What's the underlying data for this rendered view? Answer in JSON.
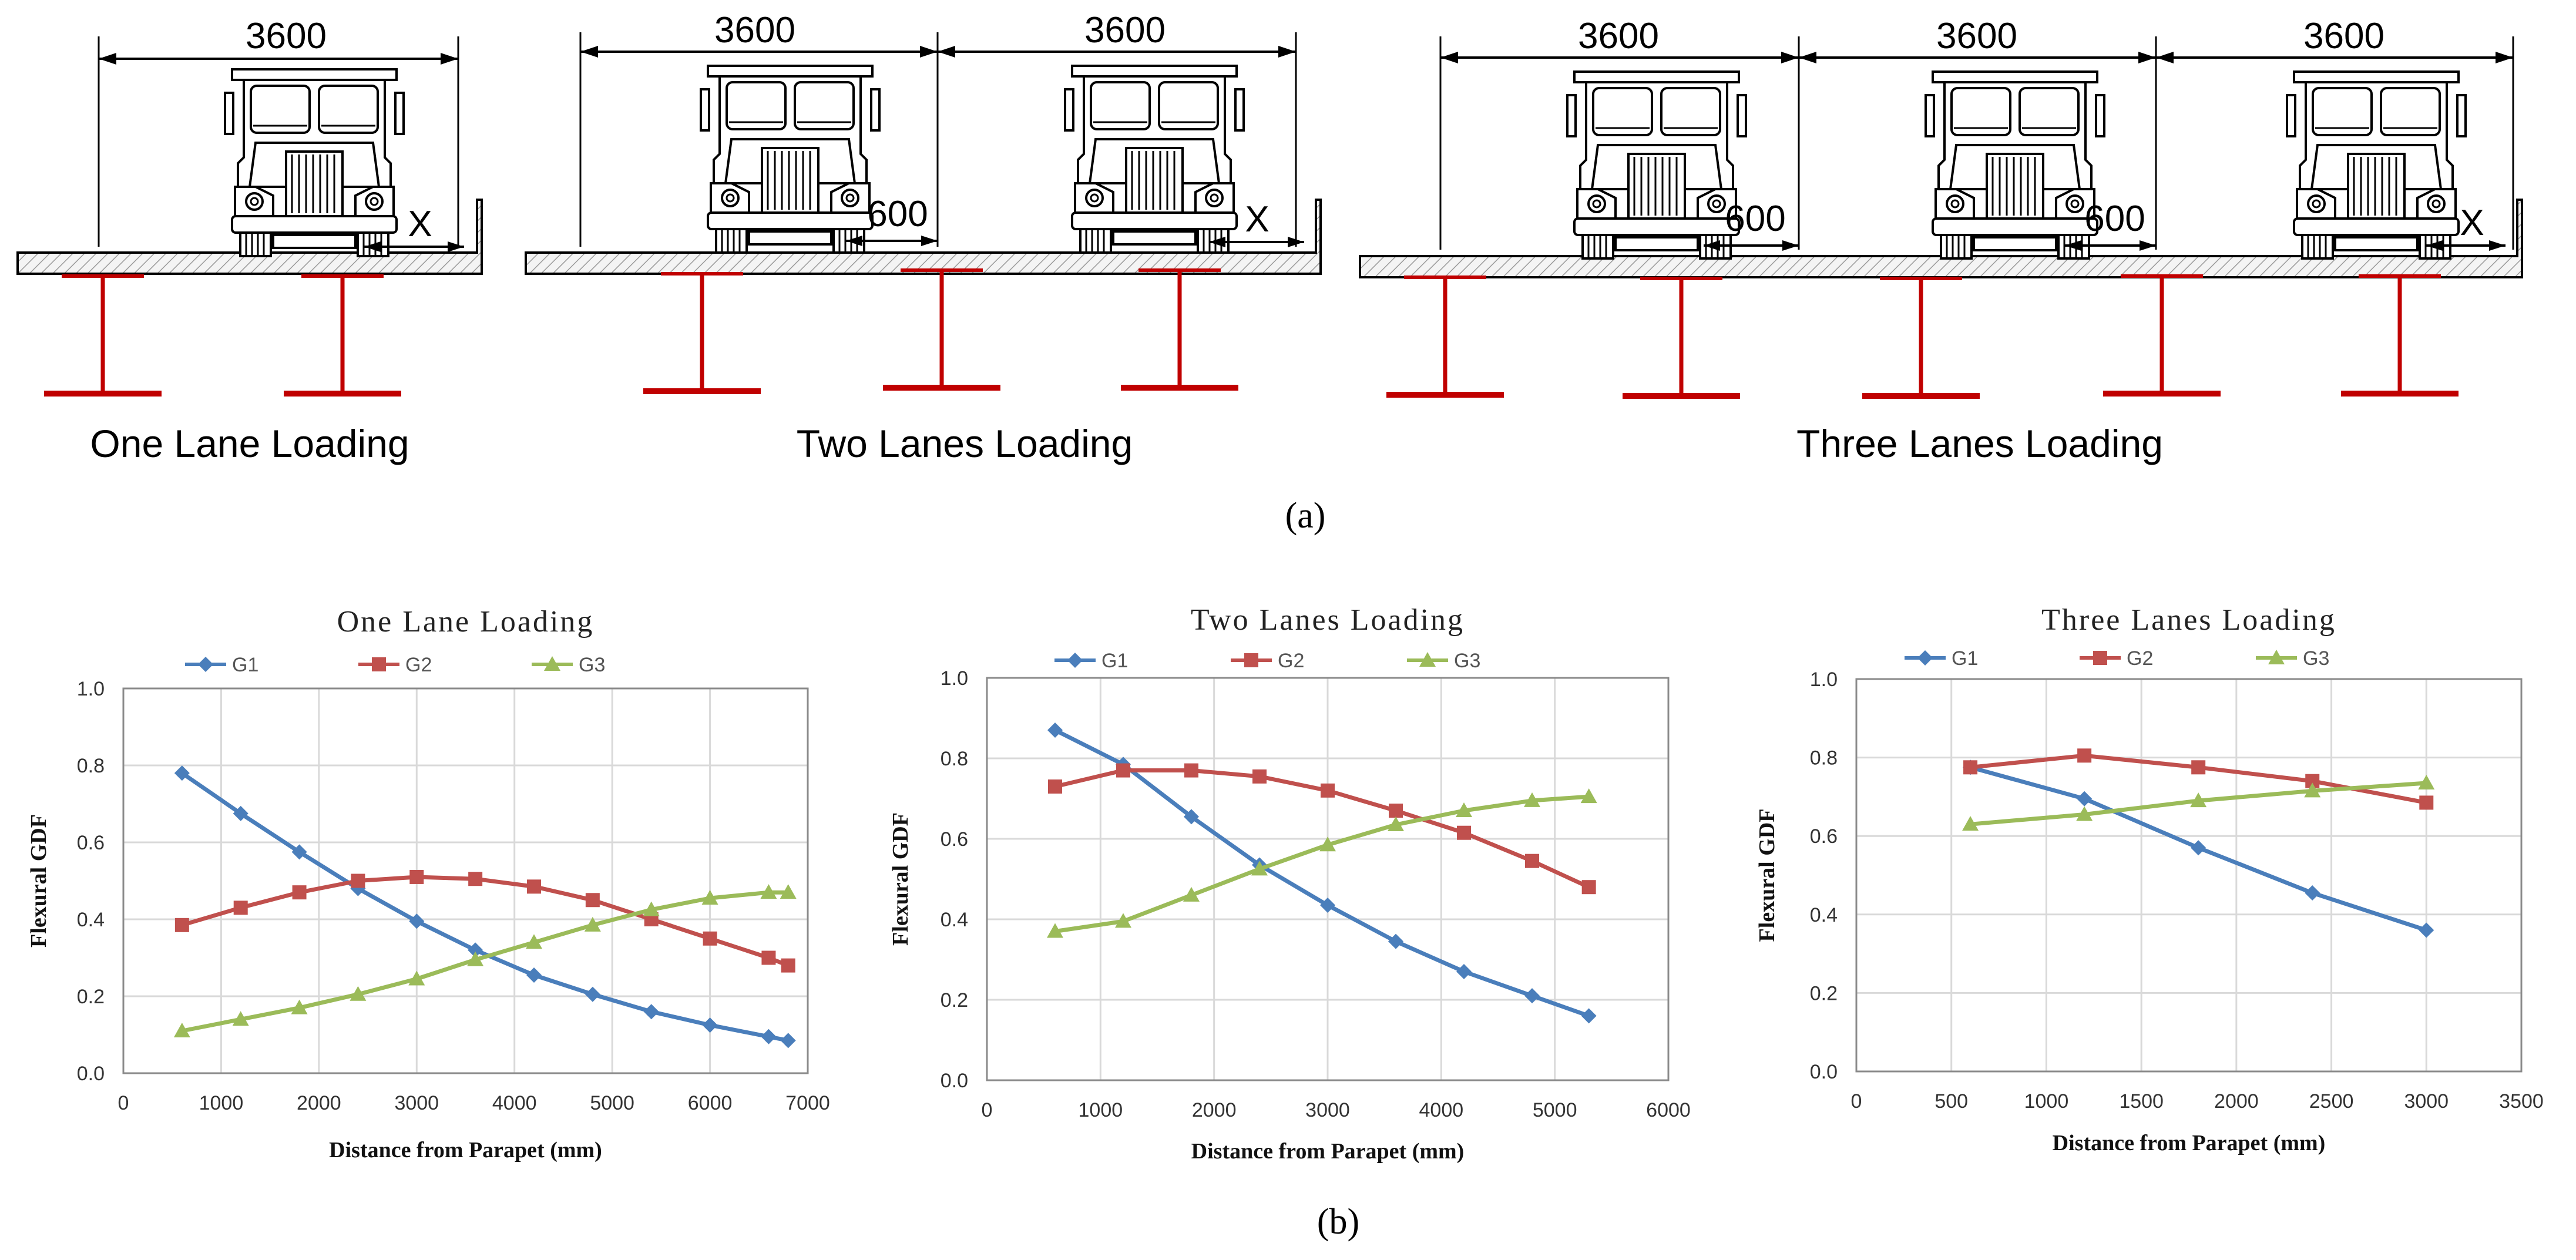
{
  "diagram": {
    "caption": "(a)",
    "schemes": [
      {
        "title": "One Lane Loading",
        "lane_width_labels": [
          "3600"
        ],
        "gap_labels": [],
        "parapet_label": "X"
      },
      {
        "title": "Two Lanes Loading",
        "lane_width_labels": [
          "3600",
          "3600"
        ],
        "gap_labels": [
          "600"
        ],
        "parapet_label": "X"
      },
      {
        "title": "Three Lanes Loading",
        "lane_width_labels": [
          "3600",
          "3600",
          "3600"
        ],
        "gap_labels": [
          "600",
          "600"
        ],
        "parapet_label": "X"
      }
    ],
    "colors": {
      "girder": "#c00000",
      "line": "#000000",
      "deck_hatch": "#9a9a9a"
    }
  },
  "charts_caption": "(b)",
  "chart_data": [
    {
      "type": "line",
      "title": "One Lane Loading",
      "xlabel": "Distance from Parapet (mm)",
      "ylabel": "Flexural GDF",
      "xlim": [
        0,
        7000
      ],
      "ylim": [
        0,
        1.0
      ],
      "xticks": [
        0,
        1000,
        2000,
        3000,
        4000,
        5000,
        6000,
        7000
      ],
      "yticks": [
        "0.0",
        "0.2",
        "0.4",
        "0.6",
        "0.8",
        "1.0"
      ],
      "grid": true,
      "legend": "top",
      "x": [
        600,
        1200,
        1800,
        2400,
        3000,
        3600,
        4200,
        4800,
        5400,
        6000,
        6600,
        6800
      ],
      "series": [
        {
          "name": "G1",
          "color": "#4a7ebb",
          "marker": "diamond",
          "values": [
            0.78,
            0.675,
            0.575,
            0.48,
            0.395,
            0.32,
            0.255,
            0.205,
            0.16,
            0.125,
            0.095,
            0.085
          ]
        },
        {
          "name": "G2",
          "color": "#c0504d",
          "marker": "square",
          "values": [
            0.385,
            0.43,
            0.47,
            0.5,
            0.51,
            0.505,
            0.485,
            0.45,
            0.4,
            0.35,
            0.3,
            0.28
          ]
        },
        {
          "name": "G3",
          "color": "#9bbb59",
          "marker": "triangle",
          "values": [
            0.11,
            0.14,
            0.17,
            0.205,
            0.245,
            0.295,
            0.34,
            0.385,
            0.425,
            0.455,
            0.47,
            0.47
          ]
        }
      ]
    },
    {
      "type": "line",
      "title": "Two Lanes Loading",
      "xlabel": "Distance from Parapet (mm)",
      "ylabel": "Flexural GDF",
      "xlim": [
        0,
        6000
      ],
      "ylim": [
        0,
        1.0
      ],
      "xticks": [
        0,
        1000,
        2000,
        3000,
        4000,
        5000,
        6000
      ],
      "yticks": [
        "0.0",
        "0.2",
        "0.4",
        "0.6",
        "0.8",
        "1.0"
      ],
      "grid": true,
      "legend": "top",
      "x": [
        600,
        1200,
        1800,
        2400,
        3000,
        3600,
        4200,
        4800,
        5300
      ],
      "series": [
        {
          "name": "G1",
          "color": "#4a7ebb",
          "marker": "diamond",
          "values": [
            0.87,
            0.785,
            0.655,
            0.535,
            0.435,
            0.345,
            0.27,
            0.21,
            0.16
          ]
        },
        {
          "name": "G2",
          "color": "#c0504d",
          "marker": "square",
          "values": [
            0.73,
            0.77,
            0.77,
            0.755,
            0.72,
            0.67,
            0.615,
            0.545,
            0.48
          ]
        },
        {
          "name": "G3",
          "color": "#9bbb59",
          "marker": "triangle",
          "values": [
            0.37,
            0.395,
            0.46,
            0.525,
            0.585,
            0.635,
            0.67,
            0.695,
            0.705
          ]
        }
      ]
    },
    {
      "type": "line",
      "title": "Three Lanes Loading",
      "xlabel": "Distance from Parapet (mm)",
      "ylabel": "Flexural GDF",
      "xlim": [
        0,
        3500
      ],
      "ylim": [
        0,
        1.0
      ],
      "xticks": [
        0,
        500,
        1000,
        1500,
        2000,
        2500,
        3000,
        3500
      ],
      "yticks": [
        "0.0",
        "0.2",
        "0.4",
        "0.6",
        "0.8",
        "1.0"
      ],
      "grid": true,
      "legend": "top",
      "x": [
        600,
        1200,
        1800,
        2400,
        3000
      ],
      "series": [
        {
          "name": "G1",
          "color": "#4a7ebb",
          "marker": "diamond",
          "values": [
            0.775,
            0.695,
            0.57,
            0.455,
            0.36
          ]
        },
        {
          "name": "G2",
          "color": "#c0504d",
          "marker": "square",
          "values": [
            0.775,
            0.805,
            0.775,
            0.74,
            0.685
          ]
        },
        {
          "name": "G3",
          "color": "#9bbb59",
          "marker": "triangle",
          "values": [
            0.63,
            0.655,
            0.69,
            0.715,
            0.735
          ]
        }
      ]
    }
  ]
}
